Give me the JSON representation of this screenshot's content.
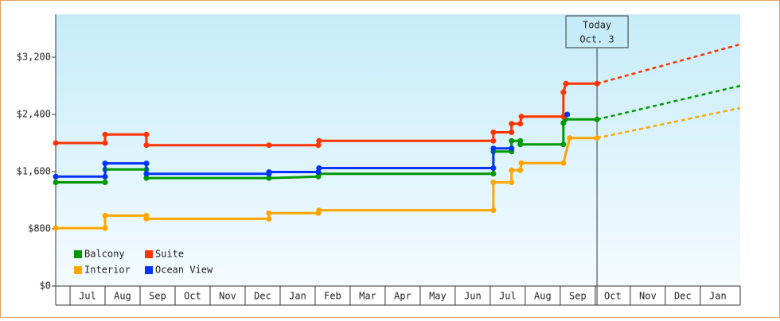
{
  "chart_data": {
    "type": "line",
    "categories": [
      "Jul",
      "Aug",
      "Sep",
      "Oct",
      "Nov",
      "Dec",
      "Jan",
      "Feb",
      "Mar",
      "Apr",
      "May",
      "Jun",
      "Jul",
      "Aug",
      "Sep",
      "Oct",
      "Nov",
      "Dec",
      "Jan"
    ],
    "xlim": [
      -0.41,
      19.14
    ],
    "ylim": [
      0,
      3800
    ],
    "yticks": [
      {
        "value": 0,
        "label": "$0"
      },
      {
        "value": 800,
        "label": "$800"
      },
      {
        "value": 1600,
        "label": "$1,600"
      },
      {
        "value": 2400,
        "label": "$2,400"
      },
      {
        "value": 3200,
        "label": "$3,200"
      }
    ],
    "annotation": {
      "text": [
        "Today",
        "Oct. 3"
      ],
      "x": 15.05
    },
    "legend": "lower left",
    "series": [
      {
        "name": "Balcony",
        "color": "#009900",
        "x": [
          -0.41,
          1.0,
          1.0,
          2.18,
          2.18,
          5.68,
          7.09,
          7.11,
          12.09,
          12.09,
          12.61,
          12.61,
          12.86,
          12.86,
          14.09,
          14.09,
          14.14,
          15.05
        ],
        "values": [
          1450,
          1450,
          1630,
          1630,
          1510,
          1510,
          1530,
          1570,
          1570,
          1880,
          1880,
          2030,
          2030,
          1980,
          1980,
          2280,
          2330,
          2330
        ],
        "projection": 2800
      },
      {
        "name": "Suite",
        "color": "#ff3300",
        "x": [
          -0.41,
          1.0,
          1.0,
          2.18,
          2.18,
          5.68,
          7.09,
          7.11,
          12.09,
          12.09,
          12.61,
          12.61,
          12.86,
          12.89,
          14.09,
          14.09,
          14.16,
          15.05
        ],
        "values": [
          2000,
          2000,
          2120,
          2120,
          1970,
          1970,
          1970,
          2030,
          2030,
          2150,
          2150,
          2270,
          2270,
          2370,
          2370,
          2710,
          2830,
          2830
        ],
        "projection": 3380
      },
      {
        "name": "Interior",
        "color": "#ffa500",
        "x": [
          -0.41,
          1.0,
          1.0,
          2.18,
          2.18,
          5.68,
          5.68,
          7.09,
          7.11,
          12.09,
          12.09,
          12.61,
          12.61,
          12.86,
          12.89,
          14.09,
          14.27,
          15.05
        ],
        "values": [
          810,
          810,
          985,
          985,
          940,
          940,
          1020,
          1020,
          1060,
          1060,
          1450,
          1450,
          1620,
          1620,
          1720,
          1720,
          2070,
          2070
        ],
        "projection": 2490
      },
      {
        "name": "Ocean View",
        "color": "#0033ff",
        "x": [
          -0.41,
          1.0,
          1.0,
          2.18,
          2.18,
          5.68,
          5.68,
          7.09,
          7.11,
          12.09,
          12.09,
          12.61,
          13.0,
          14.2
        ],
        "values": [
          1530,
          1530,
          1715,
          1715,
          1570,
          1570,
          1595,
          1595,
          1650,
          1650,
          1925,
          1925,
          null,
          2400
        ]
      }
    ]
  }
}
